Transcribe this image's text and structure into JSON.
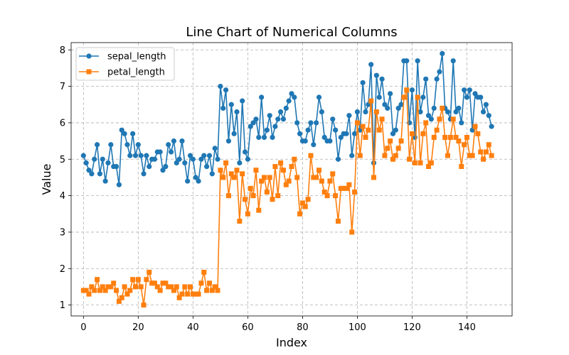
{
  "chart_data": {
    "type": "line",
    "title": "Line Chart of Numerical Columns",
    "xlabel": "Index",
    "ylabel": "Value",
    "xlim": [
      -4.5,
      156.5
    ],
    "ylim": [
      0.7,
      8.2
    ],
    "xticks": [
      0,
      20,
      40,
      60,
      80,
      100,
      120,
      140
    ],
    "yticks": [
      1,
      2,
      3,
      4,
      5,
      6,
      7,
      8
    ],
    "grid": true,
    "legend_position": "top-left",
    "x": [
      0,
      1,
      2,
      3,
      4,
      5,
      6,
      7,
      8,
      9,
      10,
      11,
      12,
      13,
      14,
      15,
      16,
      17,
      18,
      19,
      20,
      21,
      22,
      23,
      24,
      25,
      26,
      27,
      28,
      29,
      30,
      31,
      32,
      33,
      34,
      35,
      36,
      37,
      38,
      39,
      40,
      41,
      42,
      43,
      44,
      45,
      46,
      47,
      48,
      49,
      50,
      51,
      52,
      53,
      54,
      55,
      56,
      57,
      58,
      59,
      60,
      61,
      62,
      63,
      64,
      65,
      66,
      67,
      68,
      69,
      70,
      71,
      72,
      73,
      74,
      75,
      76,
      77,
      78,
      79,
      80,
      81,
      82,
      83,
      84,
      85,
      86,
      87,
      88,
      89,
      90,
      91,
      92,
      93,
      94,
      95,
      96,
      97,
      98,
      99,
      100,
      101,
      102,
      103,
      104,
      105,
      106,
      107,
      108,
      109,
      110,
      111,
      112,
      113,
      114,
      115,
      116,
      117,
      118,
      119,
      120,
      121,
      122,
      123,
      124,
      125,
      126,
      127,
      128,
      129,
      130,
      131,
      132,
      133,
      134,
      135,
      136,
      137,
      138,
      139,
      140,
      141,
      142,
      143,
      144,
      145,
      146,
      147,
      148,
      149
    ],
    "series": [
      {
        "name": "sepal_length",
        "color": "#1f77b4",
        "marker": "circle",
        "values": [
          5.1,
          4.9,
          4.7,
          4.6,
          5.0,
          5.4,
          4.6,
          5.0,
          4.4,
          4.9,
          5.4,
          4.8,
          4.8,
          4.3,
          5.8,
          5.7,
          5.4,
          5.1,
          5.7,
          5.1,
          5.4,
          5.1,
          4.6,
          5.1,
          4.8,
          5.0,
          5.0,
          5.2,
          5.2,
          4.7,
          4.8,
          5.4,
          5.2,
          5.5,
          4.9,
          5.0,
          5.5,
          4.9,
          4.4,
          5.1,
          5.0,
          4.5,
          4.4,
          5.0,
          5.1,
          4.8,
          5.1,
          4.6,
          5.3,
          5.0,
          7.0,
          6.4,
          6.9,
          5.5,
          6.5,
          5.7,
          6.3,
          4.9,
          6.6,
          5.2,
          5.0,
          5.9,
          6.0,
          6.1,
          5.6,
          6.7,
          5.6,
          5.8,
          6.2,
          5.6,
          5.9,
          6.1,
          6.3,
          6.1,
          6.4,
          6.6,
          6.8,
          6.7,
          6.0,
          5.7,
          5.5,
          5.5,
          5.8,
          6.0,
          5.4,
          6.0,
          6.7,
          6.3,
          5.6,
          5.5,
          5.5,
          6.1,
          5.8,
          5.0,
          5.6,
          5.7,
          5.7,
          6.2,
          5.1,
          5.7,
          6.3,
          5.8,
          7.1,
          6.3,
          6.5,
          7.6,
          4.9,
          7.3,
          6.7,
          7.2,
          6.5,
          6.4,
          6.8,
          5.7,
          5.8,
          6.4,
          6.5,
          7.7,
          7.7,
          6.0,
          6.9,
          5.6,
          7.7,
          6.3,
          6.7,
          7.2,
          6.2,
          6.1,
          6.4,
          7.2,
          7.4,
          7.9,
          6.4,
          6.3,
          6.1,
          7.7,
          6.3,
          6.4,
          6.0,
          6.9,
          6.7,
          6.9,
          5.8,
          6.8,
          6.7,
          6.7,
          6.3,
          6.5,
          6.2,
          5.9
        ]
      },
      {
        "name": "petal_length",
        "color": "#ff7f0e",
        "marker": "square",
        "values": [
          1.4,
          1.4,
          1.3,
          1.5,
          1.4,
          1.7,
          1.4,
          1.5,
          1.4,
          1.5,
          1.5,
          1.6,
          1.4,
          1.1,
          1.2,
          1.5,
          1.3,
          1.4,
          1.7,
          1.5,
          1.7,
          1.5,
          1.0,
          1.7,
          1.9,
          1.6,
          1.6,
          1.5,
          1.4,
          1.6,
          1.6,
          1.5,
          1.5,
          1.4,
          1.5,
          1.2,
          1.3,
          1.5,
          1.3,
          1.5,
          1.3,
          1.3,
          1.3,
          1.6,
          1.9,
          1.4,
          1.6,
          1.4,
          1.5,
          1.4,
          4.7,
          4.5,
          4.9,
          4.0,
          4.6,
          4.5,
          4.7,
          3.3,
          4.6,
          3.9,
          3.5,
          4.2,
          4.0,
          4.7,
          3.6,
          4.4,
          4.5,
          4.1,
          4.5,
          3.9,
          4.8,
          4.0,
          4.9,
          4.7,
          4.3,
          4.4,
          4.8,
          5.0,
          4.5,
          3.5,
          3.8,
          3.7,
          3.9,
          5.1,
          4.5,
          4.5,
          4.7,
          4.4,
          4.1,
          4.0,
          4.4,
          4.6,
          4.0,
          3.3,
          4.2,
          4.2,
          4.2,
          4.3,
          3.0,
          4.1,
          6.0,
          5.1,
          5.9,
          5.6,
          5.8,
          6.6,
          4.5,
          6.3,
          5.8,
          6.1,
          5.1,
          5.3,
          5.5,
          5.0,
          5.1,
          5.3,
          5.5,
          6.7,
          6.9,
          5.0,
          5.7,
          4.9,
          6.7,
          4.9,
          5.7,
          6.0,
          4.8,
          4.9,
          5.6,
          5.8,
          6.1,
          6.4,
          5.6,
          5.1,
          5.6,
          6.1,
          5.6,
          5.5,
          4.8,
          5.4,
          5.6,
          5.1,
          5.1,
          5.9,
          5.7,
          5.2,
          5.0,
          5.2,
          5.4,
          5.1
        ]
      }
    ]
  }
}
